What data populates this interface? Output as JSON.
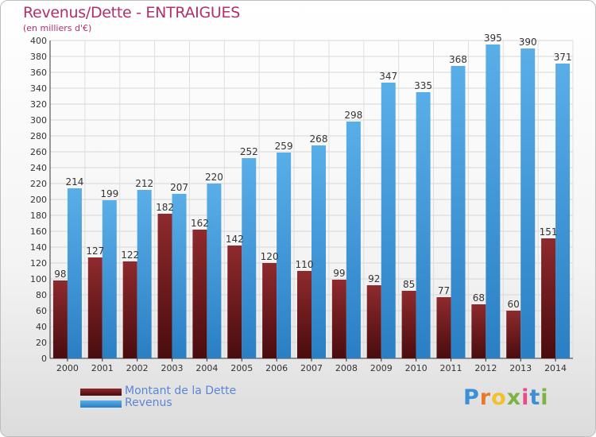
{
  "title": "Revenus/Dette - ENTRAIGUES",
  "subtitle": "(en milliers d'€)",
  "brand": {
    "letters": [
      "P",
      "r",
      "o",
      "x",
      "i",
      "t",
      "i"
    ],
    "colors": [
      "#3b8fd6",
      "#e8792a",
      "#f2c12e",
      "#7cb342",
      "#e84a8a",
      "#3b8fd6",
      "#7cb342"
    ]
  },
  "colors": {
    "dette": "#7a1f22",
    "revenus": "#3d97dd"
  },
  "chart_data": {
    "type": "bar",
    "categories": [
      "2000",
      "2001",
      "2002",
      "2003",
      "2004",
      "2005",
      "2006",
      "2007",
      "2008",
      "2009",
      "2010",
      "2011",
      "2012",
      "2013",
      "2014"
    ],
    "series": [
      {
        "name": "Montant de la Dette",
        "values": [
          98,
          127,
          122,
          182,
          162,
          142,
          120,
          110,
          99,
          92,
          85,
          77,
          68,
          60,
          151
        ]
      },
      {
        "name": "Revenus",
        "values": [
          214,
          199,
          212,
          207,
          220,
          252,
          259,
          268,
          298,
          347,
          335,
          368,
          395,
          390,
          371
        ]
      }
    ],
    "ylim": [
      0,
      400
    ],
    "ytick_step": 20,
    "grid": true,
    "legend_position": "bottom-left"
  }
}
